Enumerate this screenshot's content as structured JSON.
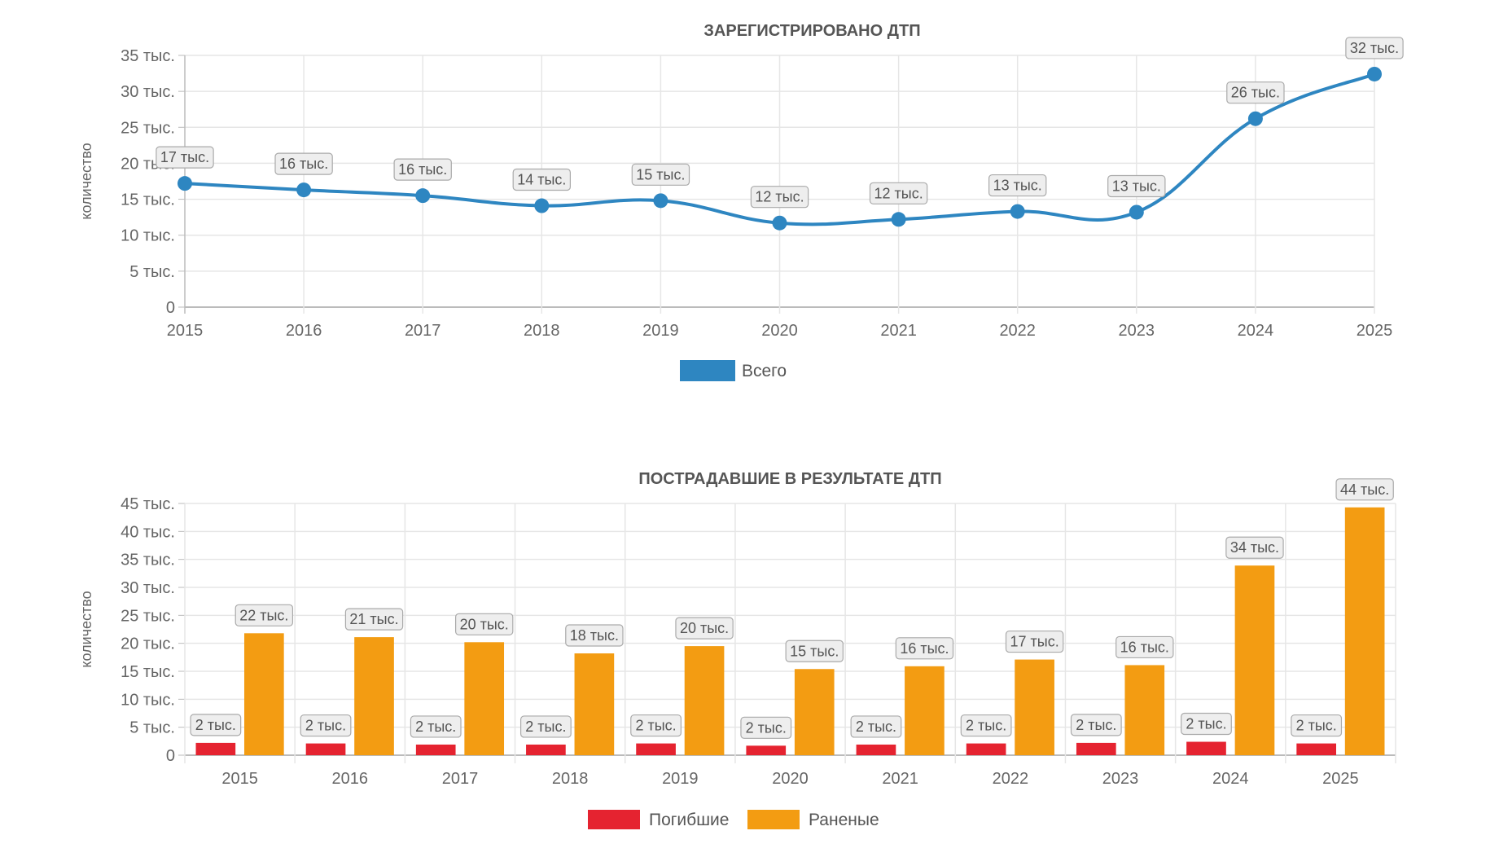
{
  "chart_data": [
    {
      "type": "line",
      "title": "ЗАРЕГИСТРИРОВАНО ДТП",
      "ylabel": "количество",
      "xlabel": "",
      "categories": [
        "2015",
        "2016",
        "2017",
        "2018",
        "2019",
        "2020",
        "2021",
        "2022",
        "2023",
        "2024",
        "2025"
      ],
      "ylim": [
        0,
        35000
      ],
      "yticks": [
        0,
        5000,
        10000,
        15000,
        20000,
        25000,
        30000,
        35000
      ],
      "ytick_labels": [
        "0",
        "5 тыс.",
        "10 тыс.",
        "15 тыс.",
        "20 тыс.",
        "25 тыс.",
        "30 тыс.",
        "35 тыс."
      ],
      "grid": true,
      "legend_position": "bottom",
      "series": [
        {
          "name": "Всего",
          "color": "#2e86c1",
          "values": [
            17200,
            16300,
            15500,
            14100,
            14800,
            11700,
            12200,
            13300,
            13200,
            26200,
            32400
          ],
          "labels": [
            "17 тыс.",
            "16 тыс.",
            "16 тыс.",
            "14 тыс.",
            "15 тыс.",
            "12 тыс.",
            "12 тыс.",
            "13 тыс.",
            "13 тыс.",
            "26 тыс.",
            "32 тыс."
          ]
        }
      ]
    },
    {
      "type": "bar",
      "title": "ПОСТРАДАВШИЕ В РЕЗУЛЬТАТЕ ДТП",
      "ylabel": "количество",
      "xlabel": "",
      "categories": [
        "2015",
        "2016",
        "2017",
        "2018",
        "2019",
        "2020",
        "2021",
        "2022",
        "2023",
        "2024",
        "2025"
      ],
      "ylim": [
        0,
        45000
      ],
      "yticks": [
        0,
        5000,
        10000,
        15000,
        20000,
        25000,
        30000,
        35000,
        40000,
        45000
      ],
      "ytick_labels": [
        "0",
        "5 тыс.",
        "10 тыс.",
        "15 тыс.",
        "20 тыс.",
        "25 тыс.",
        "30 тыс.",
        "35 тыс.",
        "40 тыс.",
        "45 тыс."
      ],
      "grid": true,
      "legend_position": "bottom",
      "series": [
        {
          "name": "Погибшие",
          "color": "#e52330",
          "values": [
            2200,
            2100,
            1900,
            1900,
            2100,
            1700,
            1900,
            2100,
            2200,
            2400,
            2100
          ],
          "labels": [
            "2 тыс.",
            "2 тыс.",
            "2 тыс.",
            "2 тыс.",
            "2 тыс.",
            "2 тыс.",
            "2 тыс.",
            "2 тыс.",
            "2 тыс.",
            "2 тыс.",
            "2 тыс."
          ]
        },
        {
          "name": "Раненые",
          "color": "#f39c12",
          "values": [
            21800,
            21100,
            20200,
            18200,
            19500,
            15400,
            15900,
            17100,
            16100,
            33900,
            44300
          ],
          "labels": [
            "22 тыс.",
            "21 тыс.",
            "20 тыс.",
            "18 тыс.",
            "20 тыс.",
            "15 тыс.",
            "16 тыс.",
            "17 тыс.",
            "16 тыс.",
            "34 тыс.",
            "44 тыс."
          ]
        }
      ]
    }
  ]
}
